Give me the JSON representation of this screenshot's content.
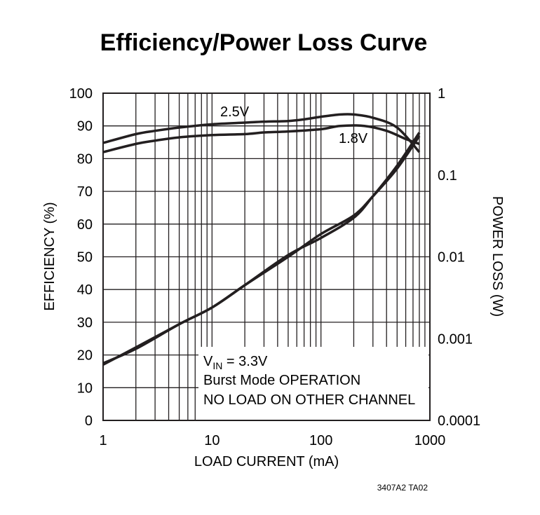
{
  "chart_data": {
    "type": "line",
    "title": "Efficiency/Power Loss Curve",
    "xlabel": "LOAD CURRENT (mA)",
    "ylabel": "EFFICIENCY (%)",
    "y2label": "POWER LOSS (W)",
    "xscale": "log",
    "xlim": [
      1,
      1000
    ],
    "ylim": [
      0,
      100
    ],
    "y2scale": "log",
    "y2lim": [
      0.0001,
      1
    ],
    "grid": true,
    "x_ticks": [
      "1",
      "10",
      "100",
      "1000"
    ],
    "y_ticks": [
      "0",
      "10",
      "20",
      "30",
      "40",
      "50",
      "60",
      "70",
      "80",
      "90",
      "100"
    ],
    "y2_ticks": [
      "0.0001",
      "0.001",
      "0.01",
      "0.1",
      "1"
    ],
    "annotation": {
      "vin_prefix": "V",
      "vin_sub": "IN",
      "vin_value": " = 3.3V",
      "line2": "Burst Mode OPERATION",
      "line3": "NO LOAD ON OTHER CHANNEL"
    },
    "series": [
      {
        "name": "2.5V",
        "axis": "left",
        "x": [
          1,
          2,
          3,
          5,
          10,
          20,
          30,
          50,
          70,
          100,
          150,
          200,
          300,
          500,
          800
        ],
        "y": [
          84.8,
          87.5,
          88.5,
          89.5,
          90.5,
          91,
          91.3,
          91.5,
          92,
          92.8,
          93.5,
          93.5,
          92.5,
          89.5,
          82
        ]
      },
      {
        "name": "1.8V",
        "axis": "left",
        "x": [
          1,
          2,
          3,
          5,
          10,
          20,
          30,
          50,
          100,
          150,
          250,
          400,
          600,
          800
        ],
        "y": [
          82,
          84.5,
          85.5,
          86.5,
          87.2,
          87.5,
          88,
          88.3,
          89,
          90,
          90,
          88.5,
          86,
          84.5
        ]
      },
      {
        "axis": "right",
        "x": [
          1,
          2,
          5,
          10,
          20,
          50,
          100,
          200,
          300,
          500,
          800
        ],
        "y": [
          0.0005,
          0.00075,
          0.0015,
          0.0024,
          0.0045,
          0.01,
          0.019,
          0.032,
          0.055,
          0.12,
          0.3
        ]
      },
      {
        "axis": "right",
        "x": [
          1,
          2,
          5,
          10,
          20,
          50,
          100,
          200,
          300,
          500,
          800
        ],
        "y": [
          0.00048,
          0.00078,
          0.0015,
          0.0024,
          0.0045,
          0.0105,
          0.017,
          0.03,
          0.055,
          0.13,
          0.33
        ]
      }
    ],
    "series_labels": [
      "2.5V",
      "1.8V"
    ]
  },
  "figure_code": "3407A2 TA02"
}
